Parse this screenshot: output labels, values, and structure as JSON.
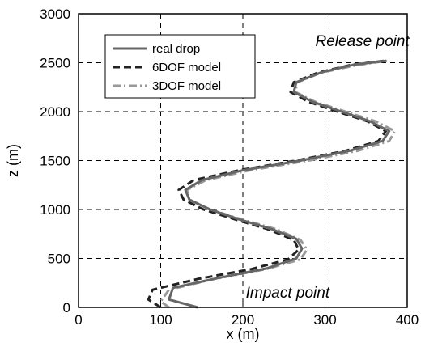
{
  "chart_data": {
    "type": "line",
    "title": "",
    "xlabel": "x (m)",
    "ylabel": "z (m)",
    "xlim": [
      0,
      400
    ],
    "ylim": [
      0,
      3000
    ],
    "xticks": [
      0,
      100,
      200,
      300,
      400
    ],
    "yticks": [
      0,
      500,
      1000,
      1500,
      2000,
      2500,
      3000
    ],
    "grid": true,
    "legend_position": "top-left",
    "annotations": [
      {
        "text": "Release point",
        "x": 375,
        "y": 2720
      },
      {
        "text": "Impact point",
        "x": 225,
        "y": 150
      }
    ],
    "series": [
      {
        "name": "real drop",
        "style": "solid",
        "color": "#666666",
        "points": [
          [
            145,
            0
          ],
          [
            110,
            80
          ],
          [
            115,
            200
          ],
          [
            170,
            300
          ],
          [
            230,
            400
          ],
          [
            265,
            500
          ],
          [
            272,
            600
          ],
          [
            265,
            700
          ],
          [
            235,
            800
          ],
          [
            195,
            900
          ],
          [
            160,
            1000
          ],
          [
            135,
            1100
          ],
          [
            130,
            1200
          ],
          [
            150,
            1300
          ],
          [
            200,
            1400
          ],
          [
            270,
            1500
          ],
          [
            330,
            1600
          ],
          [
            370,
            1700
          ],
          [
            378,
            1800
          ],
          [
            355,
            1900
          ],
          [
            320,
            2000
          ],
          [
            285,
            2100
          ],
          [
            262,
            2200
          ],
          [
            265,
            2300
          ],
          [
            295,
            2400
          ],
          [
            335,
            2480
          ],
          [
            375,
            2520
          ]
        ]
      },
      {
        "name": "6DOF model",
        "style": "dashed",
        "color": "#222222",
        "points": [
          [
            100,
            0
          ],
          [
            85,
            80
          ],
          [
            90,
            180
          ],
          [
            145,
            290
          ],
          [
            210,
            390
          ],
          [
            255,
            490
          ],
          [
            268,
            590
          ],
          [
            262,
            690
          ],
          [
            230,
            800
          ],
          [
            190,
            900
          ],
          [
            152,
            1000
          ],
          [
            128,
            1100
          ],
          [
            122,
            1200
          ],
          [
            140,
            1300
          ],
          [
            195,
            1400
          ],
          [
            265,
            1500
          ],
          [
            325,
            1600
          ],
          [
            365,
            1700
          ],
          [
            374,
            1800
          ],
          [
            352,
            1900
          ],
          [
            315,
            2000
          ],
          [
            280,
            2100
          ],
          [
            258,
            2200
          ],
          [
            262,
            2300
          ],
          [
            292,
            2400
          ],
          [
            333,
            2480
          ],
          [
            373,
            2520
          ]
        ]
      },
      {
        "name": "3DOF model",
        "style": "dashdot",
        "color": "#999999",
        "points": [
          [
            110,
            0
          ],
          [
            100,
            60
          ],
          [
            110,
            180
          ],
          [
            165,
            290
          ],
          [
            228,
            390
          ],
          [
            270,
            490
          ],
          [
            278,
            590
          ],
          [
            270,
            690
          ],
          [
            240,
            800
          ],
          [
            198,
            900
          ],
          [
            160,
            1000
          ],
          [
            135,
            1100
          ],
          [
            132,
            1200
          ],
          [
            155,
            1300
          ],
          [
            208,
            1400
          ],
          [
            280,
            1500
          ],
          [
            340,
            1600
          ],
          [
            378,
            1700
          ],
          [
            385,
            1800
          ],
          [
            362,
            1900
          ],
          [
            325,
            2000
          ],
          [
            288,
            2100
          ],
          [
            264,
            2200
          ],
          [
            266,
            2300
          ],
          [
            296,
            2400
          ],
          [
            336,
            2470
          ],
          [
            374,
            2520
          ]
        ]
      }
    ]
  }
}
